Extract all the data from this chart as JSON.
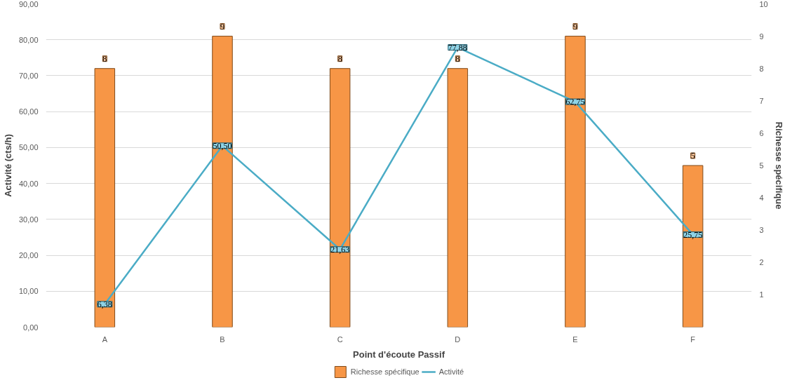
{
  "chart_data": {
    "type": "bar",
    "xlabel": "Point d'écoute Passif",
    "ylabel": "Activité (cts/h)",
    "y2label": "Richesse spécifique",
    "categories": [
      "A",
      "B",
      "C",
      "D",
      "E",
      "F"
    ],
    "series": [
      {
        "name": "Richesse spécifique",
        "axis": "y2",
        "color": "#f79646",
        "values": [
          8,
          9,
          8,
          8,
          9,
          5
        ],
        "value_labels": [
          "8",
          "9",
          "8",
          "8",
          "9",
          "5"
        ]
      },
      {
        "name": "Activité",
        "type": "line",
        "color": "#4bacc6",
        "values": [
          6.38,
          50.5,
          21.63,
          77.88,
          62.75,
          25.75
        ],
        "value_labels": [
          "6,38",
          "50,50",
          "21,63",
          "77,88",
          "62,75",
          "25,75"
        ]
      }
    ],
    "ylim": [
      0,
      90
    ],
    "yticks": [
      {
        "value": 0,
        "label": "0,00"
      },
      {
        "value": 10,
        "label": "10,00"
      },
      {
        "value": 20,
        "label": "20,00"
      },
      {
        "value": 30,
        "label": "30,00"
      },
      {
        "value": 40,
        "label": "40,00"
      },
      {
        "value": 50,
        "label": "50,00"
      },
      {
        "value": 60,
        "label": "60,00"
      },
      {
        "value": 70,
        "label": "70,00"
      },
      {
        "value": 80,
        "label": "80,00"
      },
      {
        "value": 90,
        "label": "90,00"
      }
    ],
    "y2lim": [
      0,
      10
    ],
    "y2ticks": [
      1,
      2,
      3,
      4,
      5,
      6,
      7,
      8,
      9,
      10
    ],
    "grid": "y",
    "legend": "bottom"
  }
}
